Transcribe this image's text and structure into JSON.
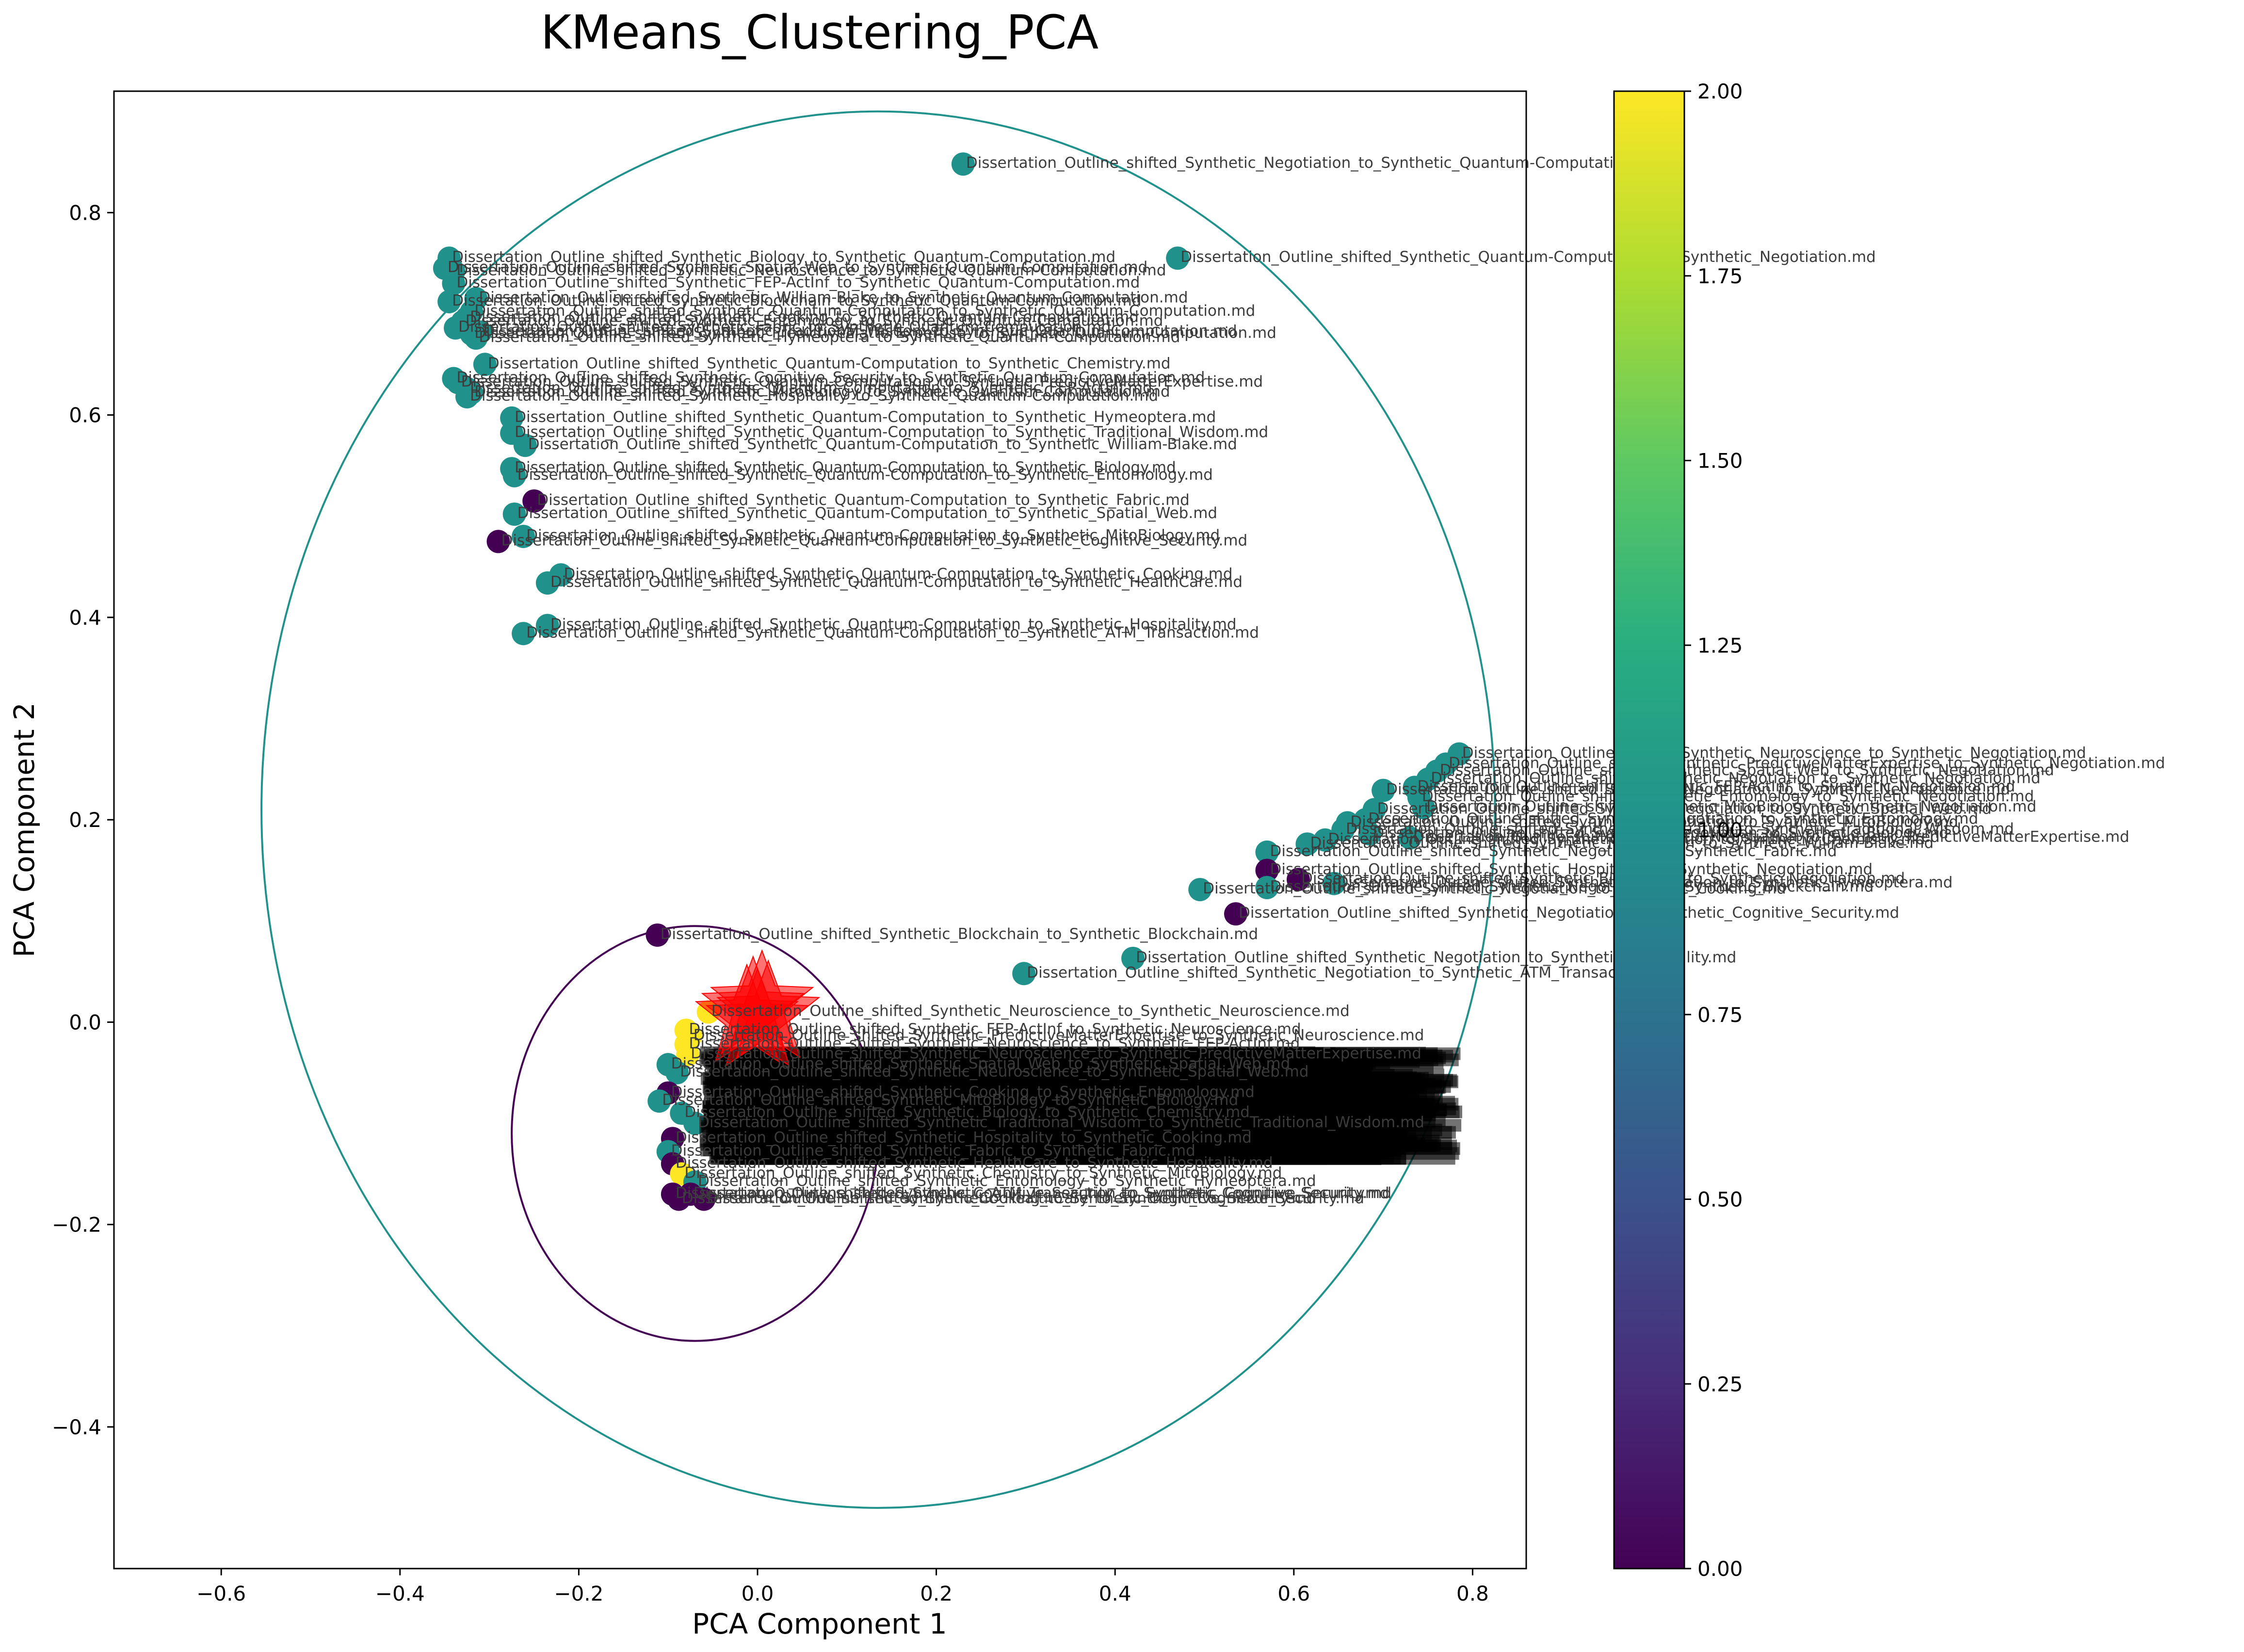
{
  "chart_data": {
    "type": "scatter",
    "title": "KMeans_Clustering_PCA",
    "xlabel": "PCA Component 1",
    "ylabel": "PCA Component 2",
    "xlim": [
      -0.72,
      0.86
    ],
    "ylim": [
      -0.54,
      0.92
    ],
    "x_ticks": [
      -0.6,
      -0.4,
      -0.2,
      0.0,
      0.2,
      0.4,
      0.6,
      0.8
    ],
    "x_tick_labels": [
      "−0.6",
      "−0.4",
      "−0.2",
      "0.0",
      "0.2",
      "0.4",
      "0.6",
      "0.8"
    ],
    "y_ticks": [
      -0.4,
      -0.2,
      0.0,
      0.2,
      0.4,
      0.6,
      0.8
    ],
    "y_tick_labels": [
      "−0.4",
      "−0.2",
      "0.0",
      "0.2",
      "0.4",
      "0.6",
      "0.8"
    ],
    "grid": false,
    "colormap": "viridis",
    "colorbar": {
      "range": [
        0.0,
        2.0
      ],
      "ticks": [
        0.0,
        0.25,
        0.5,
        0.75,
        1.0,
        1.25,
        1.5,
        1.75,
        2.0
      ],
      "tick_labels": [
        "0.00",
        "0.25",
        "0.50",
        "0.75",
        "1.00",
        "1.25",
        "1.50",
        "1.75",
        "2.00"
      ]
    },
    "cluster_colors": {
      "0": "#440154",
      "1": "#21918c",
      "2": "#fde725"
    },
    "centroid_color": "#ff0000",
    "centroid_marker": "star",
    "cluster_circles": [
      {
        "cluster": 0,
        "center": [
          -0.07,
          -0.11
        ],
        "radius": 0.205
      },
      {
        "cluster": 1,
        "center": [
          0.135,
          0.21
        ],
        "radius": 0.69
      }
    ],
    "points": [
      {
        "x": 0.23,
        "y": 0.848,
        "cluster": 1,
        "label": "Dissertation_Outline_shifted_Synthetic_Negotiation_to_Synthetic_Quantum-Computation.md"
      },
      {
        "x": -0.345,
        "y": 0.755,
        "cluster": 1,
        "label": "Dissertation_Outline_shifted_Synthetic_Biology_to_Synthetic_Quantum-Computation.md"
      },
      {
        "x": 0.47,
        "y": 0.755,
        "cluster": 1,
        "label": "Dissertation_Outline_shifted_Synthetic_Quantum-Computation_to_Synthetic_Negotiation.md"
      },
      {
        "x": -0.35,
        "y": 0.745,
        "cluster": 1,
        "label": "Dissertation_Outline_shifted_Synthetic_Spatial_Web_to_Synthetic_Quantum-Computation.md"
      },
      {
        "x": -0.34,
        "y": 0.742,
        "cluster": 1,
        "label": "Dissertation_Outline_shifted_Synthetic_Neuroscience_to_Synthetic_Quantum-Computation.md"
      },
      {
        "x": -0.34,
        "y": 0.73,
        "cluster": 1,
        "label": "Dissertation_Outline_shifted_Synthetic_FEP-ActInf_to_Synthetic_Quantum-Computation.md"
      },
      {
        "x": -0.315,
        "y": 0.715,
        "cluster": 1,
        "label": "Dissertation_Outline_shifted_Synthetic_William-Blake_to_Synthetic_Quantum-Computation.md"
      },
      {
        "x": -0.345,
        "y": 0.712,
        "cluster": 1,
        "label": "Dissertation_Outline_shifted_Synthetic_Blockchain_to_Synthetic_Quantum-Computation.md"
      },
      {
        "x": -0.32,
        "y": 0.702,
        "cluster": 1,
        "label": "Dissertation_Outline_shifted_Synthetic_Quantum-Computation_to_Synthetic_Quantum-Computation.md"
      },
      {
        "x": -0.325,
        "y": 0.696,
        "cluster": 1,
        "label": "Dissertation_Outline_shifted_Synthetic_Cooking_to_Synthetic_Quantum-Computation.md"
      },
      {
        "x": -0.33,
        "y": 0.692,
        "cluster": 1,
        "label": "Dissertation_Outline_shifted_Synthetic_Entomology_to_Synthetic_Quantum-Computation.md"
      },
      {
        "x": -0.338,
        "y": 0.686,
        "cluster": 1,
        "label": "Dissertation_Outline_shifted_Synthetic_Fabric_to_Synthetic_Quantum-Computation.md"
      },
      {
        "x": -0.31,
        "y": 0.682,
        "cluster": 1,
        "label": "Dissertation_Outline_shifted_Synthetic_Traditional_Wisdom_to_Synthetic_Quantum-Computation.md"
      },
      {
        "x": -0.32,
        "y": 0.68,
        "cluster": 1,
        "label": "Dissertation_Outline_shifted_Synthetic_PredictiveMatterExpertise_to_Synthetic_Quantum-Computation.md"
      },
      {
        "x": -0.315,
        "y": 0.676,
        "cluster": 1,
        "label": "Dissertation_Outline_shifted_Synthetic_Hymeoptera_to_Synthetic_Quantum-Computation.md"
      },
      {
        "x": -0.305,
        "y": 0.65,
        "cluster": 1,
        "label": "Dissertation_Outline_shifted_Synthetic_Quantum-Computation_to_Synthetic_Chemistry.md"
      },
      {
        "x": -0.34,
        "y": 0.636,
        "cluster": 1,
        "label": "Dissertation_Outline_shifted_Synthetic_Cognitive_Security_to_Synthetic_Quantum-Computation.md"
      },
      {
        "x": -0.335,
        "y": 0.632,
        "cluster": 1,
        "label": "Dissertation_Outline_shifted_Synthetic_Quantum-Computation_to_Synthetic_PredictiveMatterExpertise.md"
      },
      {
        "x": -0.325,
        "y": 0.626,
        "cluster": 1,
        "label": "Dissertation_Outline_shifted_Synthetic_Quantum-Computation_to_Synthetic_FEP-ActInf.md"
      },
      {
        "x": -0.32,
        "y": 0.622,
        "cluster": 1,
        "label": "Dissertation_Outline_shifted_Synthetic_MitoBiology_to_Synthetic_Quantum-Computation.md"
      },
      {
        "x": -0.325,
        "y": 0.618,
        "cluster": 1,
        "label": "Dissertation_Outline_shifted_Synthetic_Hospitality_to_Synthetic_Quantum-Computation.md"
      },
      {
        "x": -0.275,
        "y": 0.597,
        "cluster": 1,
        "label": "Dissertation_Outline_shifted_Synthetic_Quantum-Computation_to_Synthetic_Hymeoptera.md"
      },
      {
        "x": -0.275,
        "y": 0.582,
        "cluster": 1,
        "label": "Dissertation_Outline_shifted_Synthetic_Quantum-Computation_to_Synthetic_Traditional_Wisdom.md"
      },
      {
        "x": -0.26,
        "y": 0.57,
        "cluster": 1,
        "label": "Dissertation_Outline_shifted_Synthetic_Quantum-Computation_to_Synthetic_William-Blake.md"
      },
      {
        "x": -0.275,
        "y": 0.547,
        "cluster": 1,
        "label": "Dissertation_Outline_shifted_Synthetic_Quantum-Computation_to_Synthetic_Biology.md"
      },
      {
        "x": -0.272,
        "y": 0.54,
        "cluster": 1,
        "label": "Dissertation_Outline_shifted_Synthetic_Quantum-Computation_to_Synthetic_Entomology.md"
      },
      {
        "x": -0.25,
        "y": 0.515,
        "cluster": 0,
        "label": "Dissertation_Outline_shifted_Synthetic_Quantum-Computation_to_Synthetic_Fabric.md"
      },
      {
        "x": -0.272,
        "y": 0.502,
        "cluster": 1,
        "label": "Dissertation_Outline_shifted_Synthetic_Quantum-Computation_to_Synthetic_Spatial_Web.md"
      },
      {
        "x": -0.262,
        "y": 0.48,
        "cluster": 1,
        "label": "Dissertation_Outline_shifted_Synthetic_Quantum-Computation_to_Synthetic_MitoBiology.md"
      },
      {
        "x": -0.29,
        "y": 0.475,
        "cluster": 0,
        "label": "Dissertation_Outline_shifted_Synthetic_Quantum-Computation_to_Synthetic_Cognitive_Security.md"
      },
      {
        "x": -0.22,
        "y": 0.442,
        "cluster": 1,
        "label": "Dissertation_Outline_shifted_Synthetic_Quantum-Computation_to_Synthetic_Cooking.md"
      },
      {
        "x": -0.235,
        "y": 0.434,
        "cluster": 1,
        "label": "Dissertation_Outline_shifted_Synthetic_Quantum-Computation_to_Synthetic_HealthCare.md"
      },
      {
        "x": -0.235,
        "y": 0.392,
        "cluster": 1,
        "label": "Dissertation_Outline_shifted_Synthetic_Quantum-Computation_to_Synthetic_Hospitality.md"
      },
      {
        "x": -0.262,
        "y": 0.384,
        "cluster": 1,
        "label": "Dissertation_Outline_shifted_Synthetic_Quantum-Computation_to_Synthetic_ATM_Transaction.md"
      },
      {
        "x": 0.785,
        "y": 0.265,
        "cluster": 1,
        "label": "Dissertation_Outline_shifted_Synthetic_Neuroscience_to_Synthetic_Negotiation.md"
      },
      {
        "x": 0.77,
        "y": 0.255,
        "cluster": 1,
        "label": "Dissertation_Outline_shifted_Synthetic_PredictiveMatterExpertise_to_Synthetic_Negotiation.md"
      },
      {
        "x": 0.76,
        "y": 0.248,
        "cluster": 1,
        "label": "Dissertation_Outline_shifted_Synthetic_Spatial_Web_to_Synthetic_Negotiation.md"
      },
      {
        "x": 0.75,
        "y": 0.24,
        "cluster": 1,
        "label": "Dissertation_Outline_shifted_Synthetic_Negotiation_to_Synthetic_Negotiation.md"
      },
      {
        "x": 0.735,
        "y": 0.232,
        "cluster": 1,
        "label": "Dissertation_Outline_shifted_Synthetic_FEP-ActInf_to_Synthetic_Negotiation.md"
      },
      {
        "x": 0.7,
        "y": 0.229,
        "cluster": 1,
        "label": "Dissertation_Outline_shifted_Synthetic_Negotiation_to_Synthetic_Neuroscience.md"
      },
      {
        "x": 0.74,
        "y": 0.222,
        "cluster": 1,
        "label": "Dissertation_Outline_shifted_Synthetic_Entomology_to_Synthetic_Negotiation.md"
      },
      {
        "x": 0.745,
        "y": 0.212,
        "cluster": 1,
        "label": "Dissertation_Outline_shifted_Synthetic_MitoBiology_to_Synthetic_Negotiation.md"
      },
      {
        "x": 0.69,
        "y": 0.21,
        "cluster": 1,
        "label": "Dissertation_Outline_shifted_Synthetic_Negotiation_to_Synthetic_Spatial_Web.md"
      },
      {
        "x": 0.68,
        "y": 0.2,
        "cluster": 1,
        "label": "Dissertation_Outline_shifted_Synthetic_Negotiation_to_Synthetic_Entomology.md"
      },
      {
        "x": 0.66,
        "y": 0.197,
        "cluster": 1,
        "label": "Dissertation_Outline_shifted_Synthetic_Negotiation_to_Synthetic_MitoBiology.md"
      },
      {
        "x": 0.655,
        "y": 0.19,
        "cluster": 1,
        "label": "Dissertation_Outline_shifted_Synthetic_Negotiation_to_Synthetic_Traditional_Wisdom.md"
      },
      {
        "x": 0.685,
        "y": 0.186,
        "cluster": 1,
        "label": "Dissertation_Outline_shifted_Synthetic_Negotiation_to_Synthetic_Biology.md"
      },
      {
        "x": 0.73,
        "y": 0.182,
        "cluster": 1,
        "label": "Dissertation_Outline_shifted_Synthetic_Negotiation_to_Synthetic_PredictiveMatterExpertise.md"
      },
      {
        "x": 0.635,
        "y": 0.18,
        "cluster": 1,
        "label": "Dissertation_Outline_shifted_Synthetic_Negotiation_to_Synthetic_Chemistry.md"
      },
      {
        "x": 0.615,
        "y": 0.176,
        "cluster": 1,
        "label": "Dissertation_Outline_shifted_Synthetic_Negotiation_to_Synthetic_William-Blake.md"
      },
      {
        "x": 0.57,
        "y": 0.168,
        "cluster": 1,
        "label": "Dissertation_Outline_shifted_Synthetic_Negotiation_to_Synthetic_Fabric.md"
      },
      {
        "x": 0.57,
        "y": 0.15,
        "cluster": 0,
        "label": "Dissertation_Outline_shifted_Synthetic_Hospitality_to_Synthetic_Negotiation.md"
      },
      {
        "x": 0.605,
        "y": 0.141,
        "cluster": 0,
        "label": "Dissertation_Outline_shifted_Synthetic_Blockchain_to_Synthetic_Negotiation.md"
      },
      {
        "x": 0.645,
        "y": 0.137,
        "cluster": 1,
        "label": "Dissertation_Outline_shifted_Synthetic_Negotiation_to_Synthetic_Hymeoptera.md"
      },
      {
        "x": 0.57,
        "y": 0.133,
        "cluster": 1,
        "label": "Dissertation_Outline_shifted_Synthetic_Negotiation_to_Synthetic_Blockchain.md"
      },
      {
        "x": 0.495,
        "y": 0.131,
        "cluster": 1,
        "label": "Dissertation_Outline_shifted_Synthetic_Negotiation_to_Synthetic_Cooking.md"
      },
      {
        "x": 0.535,
        "y": 0.107,
        "cluster": 0,
        "label": "Dissertation_Outline_shifted_Synthetic_Negotiation_to_Synthetic_Cognitive_Security.md"
      },
      {
        "x": 0.42,
        "y": 0.063,
        "cluster": 1,
        "label": "Dissertation_Outline_shifted_Synthetic_Negotiation_to_Synthetic_Hospitality.md"
      },
      {
        "x": 0.298,
        "y": 0.048,
        "cluster": 1,
        "label": "Dissertation_Outline_shifted_Synthetic_Negotiation_to_Synthetic_ATM_Transaction.md"
      },
      {
        "x": -0.112,
        "y": 0.086,
        "cluster": 0,
        "label": "Dissertation_Outline_shifted_Synthetic_Blockchain_to_Synthetic_Blockchain.md"
      },
      {
        "x": -0.055,
        "y": 0.01,
        "cluster": 2,
        "label": "Dissertation_Outline_shifted_Synthetic_Neuroscience_to_Synthetic_Neuroscience.md"
      },
      {
        "x": -0.08,
        "y": -0.008,
        "cluster": 2,
        "label": "Dissertation_Outline_shifted_Synthetic_FEP-ActInf_to_Synthetic_Neuroscience.md"
      },
      {
        "x": -0.075,
        "y": -0.014,
        "cluster": 2,
        "label": "Dissertation_Outline_shifted_Synthetic_PredictiveMatterExpertise_to_Synthetic_Neuroscience.md"
      },
      {
        "x": -0.08,
        "y": -0.022,
        "cluster": 2,
        "label": "Dissertation_Outline_shifted_Synthetic_Neuroscience_to_Synthetic_FEP-ActInf.md"
      },
      {
        "x": -0.078,
        "y": -0.032,
        "cluster": 2,
        "label": "Dissertation_Outline_shifted_Synthetic_Neuroscience_to_Synthetic_PredictiveMatterExpertise.md"
      },
      {
        "x": -0.1,
        "y": -0.042,
        "cluster": 1,
        "label": "Dissertation_Outline_shifted_Synthetic_Spatial_Web_to_Synthetic_Spatial_Web.md"
      },
      {
        "x": -0.09,
        "y": -0.05,
        "cluster": 1,
        "label": "Dissertation_Outline_shifted_Synthetic_Neuroscience_to_Synthetic_Spatial_Web.md"
      },
      {
        "x": -0.1,
        "y": -0.07,
        "cluster": 0,
        "label": "Dissertation_Outline_shifted_Synthetic_Cooking_to_Synthetic_Entomology.md"
      },
      {
        "x": -0.11,
        "y": -0.078,
        "cluster": 1,
        "label": "Dissertation_Outline_shifted_Synthetic_MitoBiology_to_Synthetic_Biology.md"
      },
      {
        "x": -0.085,
        "y": -0.09,
        "cluster": 1,
        "label": "Dissertation_Outline_shifted_Synthetic_Biology_to_Synthetic_Chemistry.md"
      },
      {
        "x": -0.07,
        "y": -0.1,
        "cluster": 1,
        "label": "Dissertation_Outline_shifted_Synthetic_Traditional_Wisdom_to_Synthetic_Traditional_Wisdom.md"
      },
      {
        "x": -0.095,
        "y": -0.115,
        "cluster": 0,
        "label": "Dissertation_Outline_shifted_Synthetic_Hospitality_to_Synthetic_Cooking.md"
      },
      {
        "x": -0.1,
        "y": -0.128,
        "cluster": 1,
        "label": "Dissertation_Outline_shifted_Synthetic_Fabric_to_Synthetic_Fabric.md"
      },
      {
        "x": -0.095,
        "y": -0.14,
        "cluster": 0,
        "label": "Dissertation_Outline_shifted_Synthetic_HealthCare_to_Synthetic_Hospitality.md"
      },
      {
        "x": -0.085,
        "y": -0.15,
        "cluster": 2,
        "label": "Dissertation_Outline_shifted_Synthetic_Chemistry_to_Synthetic_MitoBiology.md"
      },
      {
        "x": -0.07,
        "y": -0.158,
        "cluster": 1,
        "label": "Dissertation_Outline_shifted_Synthetic_Entomology_to_Synthetic_Hymeoptera.md"
      },
      {
        "x": -0.095,
        "y": -0.17,
        "cluster": 0,
        "label": "Dissertation_Outline_shifted_Synthetic_Cognitive_Security_to_Synthetic_Cognitive_Security.md"
      },
      {
        "x": -0.088,
        "y": -0.175,
        "cluster": 0,
        "label": "Dissertation_Outline_shifted_Synthetic_Cooking_to_Synthetic_Cognitive_Security.md"
      },
      {
        "x": -0.075,
        "y": -0.17,
        "cluster": 0,
        "label": "Dissertation_Outline_shifted_Synthetic_ATM_Transaction_to_Synthetic_Cognitive_Security.md"
      },
      {
        "x": -0.06,
        "y": -0.175,
        "cluster": 0,
        "label": "Dissertation_Outline_shifted_Synthetic_HealthCare_to_Synthetic_Cognitive_Security.md"
      }
    ],
    "centroids": [
      {
        "x": -0.005,
        "y": 0.012,
        "cluster": 0
      },
      {
        "x": 0.005,
        "y": 0.018,
        "cluster": 1
      },
      {
        "x": -0.012,
        "y": 0.004,
        "cluster": 2
      },
      {
        "x": 0.012,
        "y": 0.008,
        "cluster": 0
      },
      {
        "x": 0.0,
        "y": 0.0,
        "cluster": 1
      }
    ]
  }
}
